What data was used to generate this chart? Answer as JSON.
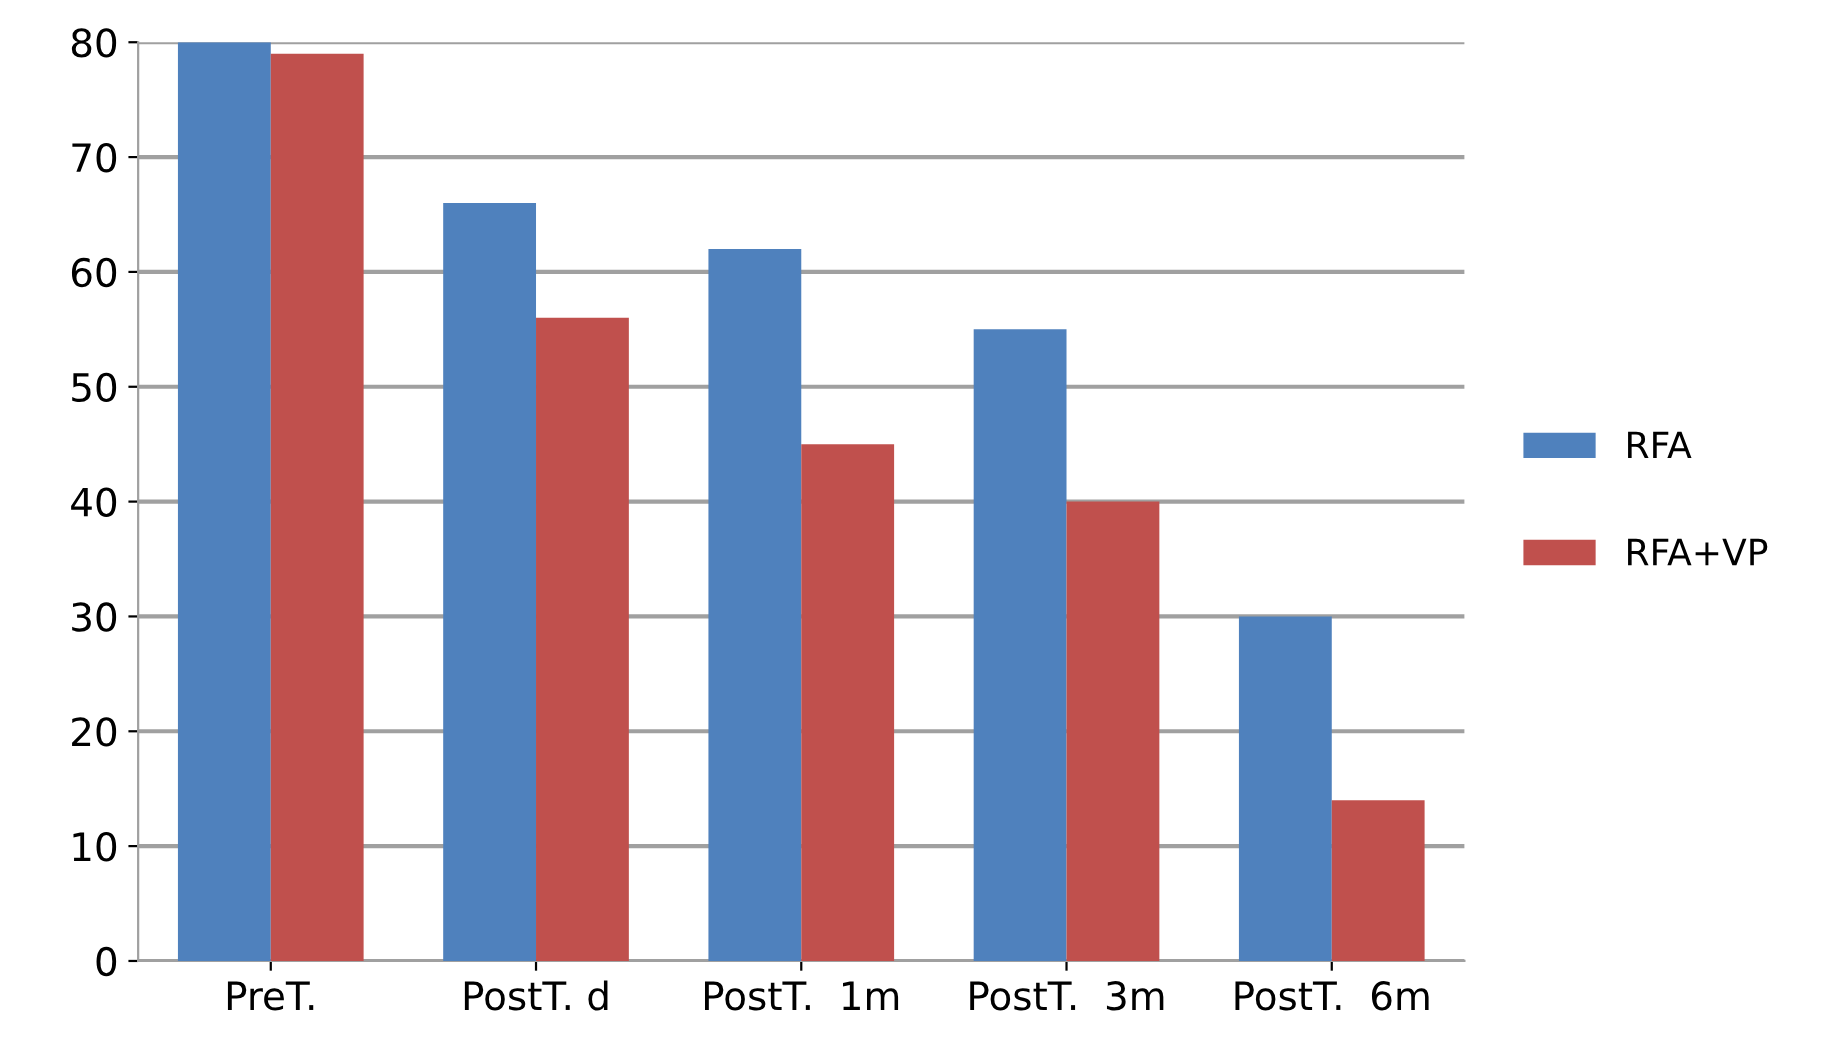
{
  "chart_data": {
    "type": "bar",
    "categories": [
      "PreT.",
      "PostT. d",
      "PostT.  1m",
      "PostT.  3m",
      "PostT.  6m"
    ],
    "series": [
      {
        "name": "RFA",
        "color": "#4f81bd",
        "values": [
          80,
          66,
          62,
          55,
          30
        ]
      },
      {
        "name": "RFA+VP",
        "color": "#c0504d",
        "values": [
          79,
          56,
          45,
          40,
          14
        ]
      }
    ],
    "ylim": [
      0,
      80
    ],
    "yticks": [
      0,
      10,
      20,
      30,
      40,
      50,
      60,
      70,
      80
    ],
    "grid": "y",
    "legend": "right"
  }
}
